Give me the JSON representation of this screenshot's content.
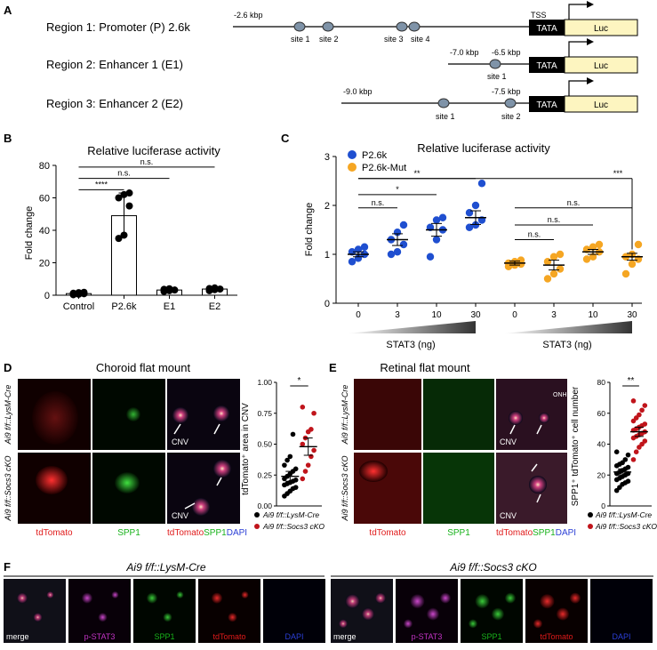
{
  "panels": {
    "A": {
      "letter": "A",
      "regions": [
        {
          "label": "Region 1: Promoter (P) 2.6k",
          "start_label": "-2.6 kbp",
          "sites": [
            "site 1",
            "site 2",
            "site 3",
            "site 4"
          ],
          "tss": "TSS"
        },
        {
          "label": "Region 2: Enhancer 1 (E1)",
          "start_label": "-7.0 kbp",
          "mid_label": "-6.5 kbp",
          "sites": [
            "site 1"
          ]
        },
        {
          "label": "Region 3: Enhancer 2 (E2)",
          "start_label": "-9.0 kbp",
          "mid_label": "-7.5 kbp",
          "sites": [
            "site 1",
            "site 2"
          ]
        }
      ],
      "tata": "TATA",
      "luc": "Luc"
    },
    "B": {
      "letter": "B",
      "chart_data": {
        "type": "bar",
        "title": "Relative luciferase activity",
        "ylabel": "Fold change",
        "categories": [
          "Control",
          "P2.6k",
          "E1",
          "E2"
        ],
        "values": [
          1,
          49,
          3.2,
          3.8
        ],
        "errors": [
          0.5,
          14,
          1.2,
          1.0
        ],
        "points": [
          [
            0.3,
            0.6,
            0.9,
            1.2,
            1.6,
            1.8
          ],
          [
            35,
            37,
            55,
            60,
            62,
            63
          ],
          [
            2.3,
            2.8,
            3.2,
            3.6,
            4.0
          ],
          [
            2.8,
            3.4,
            3.8,
            4.1,
            4.5
          ]
        ],
        "ylim": [
          0,
          80
        ],
        "yticks": [
          "0",
          "20",
          "40",
          "60",
          "80"
        ],
        "sig": [
          {
            "from": 0,
            "to": 1,
            "label": "****",
            "y": 65
          },
          {
            "from": 0,
            "to": 2,
            "label": "n.s.",
            "y": 72
          },
          {
            "from": 0,
            "to": 3,
            "label": "n.s.",
            "y": 79
          }
        ]
      }
    },
    "C": {
      "letter": "C",
      "chart_data": {
        "type": "scatter",
        "title": "Relative luciferase activity",
        "ylabel": "Fold change",
        "ylim": [
          0,
          3
        ],
        "yticks": [
          "0",
          "1",
          "2",
          "3"
        ],
        "xticks": [
          "0",
          "3",
          "10",
          "30",
          "0",
          "3",
          "10",
          "30"
        ],
        "xlabel_groups": [
          "STAT3 (ng)",
          "STAT3 (ng)"
        ],
        "series": [
          {
            "name": "P2.6k",
            "color": "#1f4fd0",
            "groups": [
              [
                0.85,
                0.92,
                1.0,
                1.05,
                1.1,
                1.15
              ],
              [
                1.0,
                1.05,
                1.2,
                1.3,
                1.45,
                1.6
              ],
              [
                0.95,
                1.3,
                1.5,
                1.55,
                1.7,
                1.75
              ],
              [
                1.55,
                1.6,
                1.7,
                1.85,
                2.0,
                2.45
              ]
            ],
            "means": [
              1.0,
              1.3,
              1.5,
              1.75
            ],
            "sem": [
              0.05,
              0.12,
              0.13,
              0.14
            ]
          },
          {
            "name": "P2.6k-Mut",
            "color": "#f5a623",
            "groups": [
              [
                0.75,
                0.78,
                0.8,
                0.82,
                0.85,
                0.88
              ],
              [
                0.5,
                0.6,
                0.7,
                0.85,
                0.95,
                1.0
              ],
              [
                0.9,
                0.95,
                1.05,
                1.1,
                1.15,
                1.2
              ],
              [
                0.6,
                0.8,
                0.9,
                0.95,
                1.0,
                1.2
              ]
            ],
            "means": [
              0.82,
              0.78,
              1.05,
              0.95
            ],
            "sem": [
              0.04,
              0.1,
              0.05,
              0.07
            ]
          }
        ],
        "sig": [
          {
            "from": 0,
            "to": 1,
            "label": "n.s.",
            "y": 1.95
          },
          {
            "from": 0,
            "to": 2,
            "label": "*",
            "y": 2.22
          },
          {
            "from": 0,
            "to": 3,
            "label": "**",
            "y": 2.55
          },
          {
            "from": 4,
            "to": 5,
            "label": "n.s.",
            "y": 1.3
          },
          {
            "from": 4,
            "to": 6,
            "label": "n.s.",
            "y": 1.6
          },
          {
            "from": 4,
            "to": 7,
            "label": "n.s.",
            "y": 1.95
          },
          {
            "from": 0,
            "to": 7,
            "label": "***",
            "y": 2.55
          }
        ]
      }
    },
    "D": {
      "letter": "D",
      "title": "Choroid flat mount",
      "row_labels": [
        "Ai9 f/f::LysM-Cre",
        "Ai9 f/f::Socs3 cKO"
      ],
      "channels": [
        "tdTomato",
        "SPP1",
        "tdTomato",
        "SPP1",
        "DAPI"
      ],
      "cnv": "CNV",
      "chart_data": {
        "type": "scatter",
        "ylabel": "tdTomato⁺ area in CNV",
        "ylim": [
          0,
          1.0
        ],
        "yticks": [
          "0.00",
          "0.25",
          "0.50",
          "0.75",
          "1.00"
        ],
        "sig": "*",
        "series": [
          {
            "name": "Ai9 f/f::LysM-Cre",
            "color": "#000000",
            "mean": 0.24,
            "sem": 0.04,
            "values": [
              0.08,
              0.1,
              0.12,
              0.14,
              0.15,
              0.17,
              0.18,
              0.19,
              0.2,
              0.21,
              0.22,
              0.24,
              0.26,
              0.28,
              0.3,
              0.33,
              0.37,
              0.4,
              0.58
            ]
          },
          {
            "name": "Ai9 f/f::Socs3 cKO",
            "color": "#c0141b",
            "mean": 0.48,
            "sem": 0.07,
            "values": [
              0.22,
              0.28,
              0.33,
              0.4,
              0.45,
              0.5,
              0.55,
              0.6,
              0.62,
              0.75,
              0.8
            ]
          }
        ]
      }
    },
    "E": {
      "letter": "E",
      "title": "Retinal flat mount",
      "row_labels": [
        "Ai9 f/f::LysM-Cre",
        "Ai9 f/f::Socs3 cKO"
      ],
      "channels": [
        "tdTomato",
        "SPP1",
        "tdTomato",
        "SPP1",
        "DAPI"
      ],
      "cnv": "CNV",
      "onh": "ONH",
      "chart_data": {
        "type": "scatter",
        "ylabel": "SPP1⁺ tdTomato⁺ cell number",
        "ylim": [
          0,
          80
        ],
        "yticks": [
          "0",
          "20",
          "40",
          "60",
          "80"
        ],
        "sig": "**",
        "series": [
          {
            "name": "Ai9 f/f::LysM-Cre",
            "color": "#000000",
            "mean": 22,
            "sem": 2,
            "values": [
              10,
              12,
              14,
              15,
              16,
              17,
              18,
              19,
              20,
              21,
              21,
              22,
              23,
              24,
              25,
              26,
              27,
              28,
              30,
              33,
              35
            ]
          },
          {
            "name": "Ai9 f/f::Socs3 cKO",
            "color": "#c0141b",
            "mean": 48,
            "sem": 3,
            "values": [
              30,
              35,
              38,
              40,
              42,
              44,
              45,
              46,
              47,
              48,
              49,
              50,
              51,
              52,
              53,
              55,
              57,
              59,
              62,
              65,
              68
            ]
          }
        ]
      }
    },
    "F": {
      "letter": "F",
      "groups": [
        {
          "title": "Ai9 f/f::LysM-Cre",
          "labels": [
            "merge",
            "p-STAT3",
            "SPP1",
            "tdTomato",
            "DAPI"
          ]
        },
        {
          "title": "Ai9 f/f::Socs3 cKO",
          "labels": [
            "merge",
            "p-STAT3",
            "SPP1",
            "tdTomato",
            "DAPI"
          ]
        }
      ]
    }
  },
  "colors": {
    "red": "#e01a1a",
    "green": "#17b21a",
    "blue": "#2b3fd6",
    "magenta": "#c233c4",
    "orange": "#f5a623",
    "cko": "#c0141b"
  }
}
